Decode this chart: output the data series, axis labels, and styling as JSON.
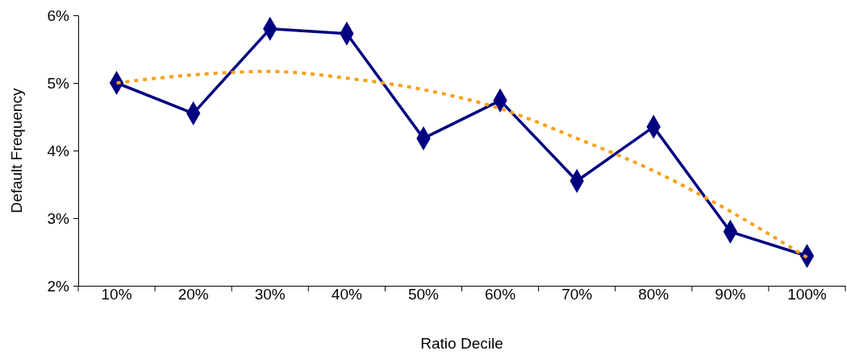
{
  "chart_data": {
    "type": "line",
    "xlabel": "Ratio Decile",
    "ylabel": "Default Frequency",
    "categories": [
      "10%",
      "20%",
      "30%",
      "40%",
      "50%",
      "60%",
      "70%",
      "80%",
      "90%",
      "100%"
    ],
    "ylim": [
      2,
      6
    ],
    "yticks": [
      {
        "value": 2,
        "label": "2%"
      },
      {
        "value": 3,
        "label": "3%"
      },
      {
        "value": 4,
        "label": "4%"
      },
      {
        "value": 5,
        "label": "5%"
      },
      {
        "value": 6,
        "label": "6%"
      }
    ],
    "grid": false,
    "series": [
      {
        "color": "#000080",
        "marker": "diamond",
        "line_style": "solid",
        "values": [
          5.0,
          4.55,
          5.8,
          5.73,
          4.18,
          4.74,
          3.55,
          4.35,
          2.8,
          2.44
        ]
      },
      {
        "color": "#f7a11a",
        "marker": "none",
        "line_style": "dotted",
        "values": [
          5.0,
          5.12,
          5.17,
          5.07,
          4.9,
          4.62,
          4.18,
          3.7,
          3.1,
          2.42
        ]
      }
    ]
  }
}
